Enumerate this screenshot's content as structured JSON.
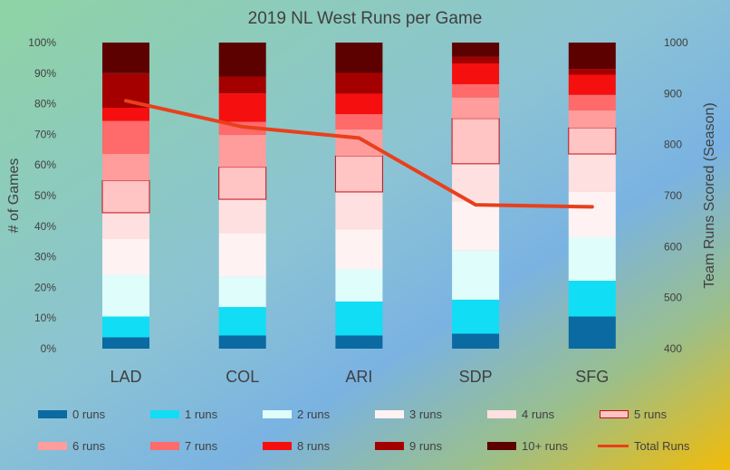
{
  "chart_data": {
    "type": "bar",
    "stacked": true,
    "title": "2019 NL West Runs per Game",
    "xlabel": "",
    "ylabel": "# of Games",
    "ylabel_right": "Team Runs Scored (Season)",
    "categories": [
      "LAD",
      "COL",
      "ARI",
      "SDP",
      "SFG"
    ],
    "y_ticks": [
      "0%",
      "10%",
      "20%",
      "30%",
      "40%",
      "50%",
      "60%",
      "70%",
      "80%",
      "90%",
      "100%"
    ],
    "y2_ticks": [
      "400",
      "500",
      "600",
      "700",
      "800",
      "900",
      "1000"
    ],
    "ylim": [
      0,
      100
    ],
    "y2lim": [
      400,
      1000
    ],
    "series": [
      {
        "name": "0 runs",
        "color": "#0a6aa1",
        "values": [
          3.7,
          4.3,
          4.3,
          4.9,
          10.5
        ]
      },
      {
        "name": "1 runs",
        "color": "#11ddf5",
        "values": [
          6.8,
          9.3,
          11.1,
          11.1,
          11.7
        ]
      },
      {
        "name": "2 runs",
        "color": "#dffdfb",
        "values": [
          13.6,
          9.9,
          10.5,
          16.0,
          14.2
        ]
      },
      {
        "name": "3 runs",
        "color": "#fff2f2",
        "values": [
          11.7,
          14.2,
          13.0,
          16.1,
          14.8
        ]
      },
      {
        "name": "4 runs",
        "color": "#ffe0e0",
        "values": [
          8.6,
          11.1,
          12.3,
          12.3,
          12.4
        ]
      },
      {
        "name": "5 runs",
        "color": "#ffc4c4",
        "border": "#c0101a",
        "values": [
          10.5,
          10.5,
          11.8,
          14.8,
          8.6
        ]
      },
      {
        "name": "6 runs",
        "color": "#ff9c9c",
        "values": [
          8.7,
          10.5,
          8.6,
          6.8,
          5.6
        ]
      },
      {
        "name": "7 runs",
        "color": "#ff6a6a",
        "values": [
          10.8,
          4.3,
          5.0,
          4.4,
          5.1
        ]
      },
      {
        "name": "8 runs",
        "color": "#f50f0f",
        "values": [
          4.3,
          9.3,
          6.7,
          6.8,
          6.6
        ]
      },
      {
        "name": "9 runs",
        "color": "#a50000",
        "values": [
          11.3,
          5.5,
          6.8,
          2.1,
          1.9
        ]
      },
      {
        "name": "10+ runs",
        "color": "#5c0000",
        "values": [
          10.0,
          11.1,
          9.9,
          4.7,
          8.6
        ]
      }
    ],
    "line_series": {
      "name": "Total Runs",
      "color": "#e8401c",
      "values": [
        886,
        835,
        813,
        682,
        678
      ]
    }
  }
}
